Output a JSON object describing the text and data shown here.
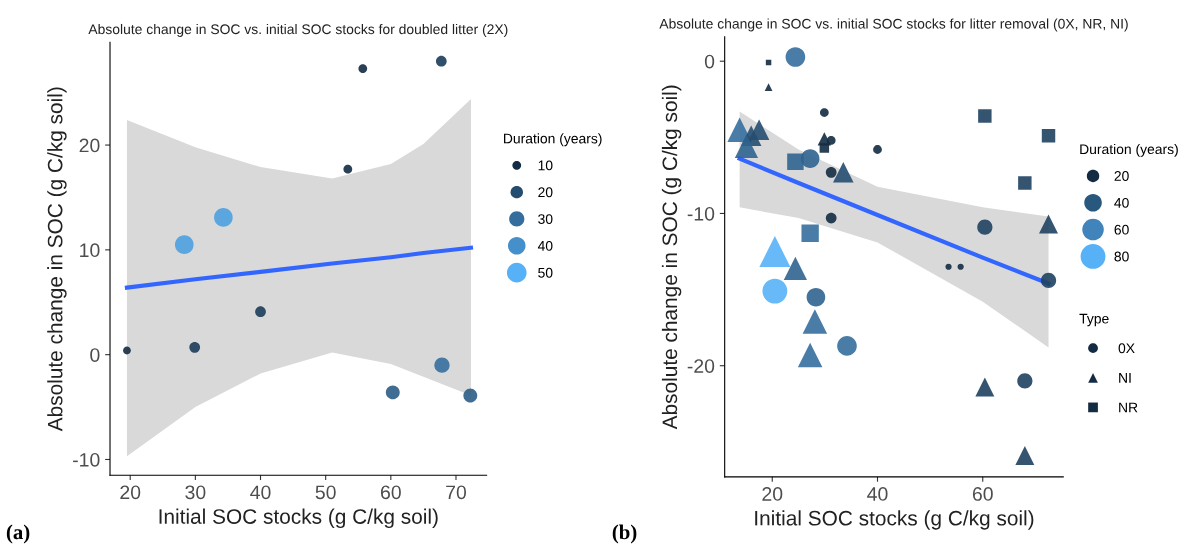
{
  "chart_data": [
    {
      "type": "scatter",
      "title": "Absolute change in SOC vs. initial SOC stocks for doubled litter (2X)",
      "xlabel": "Initial SOC stocks (g C/kg soil)",
      "ylabel": "Absolute change in SOC (g C/kg soil)",
      "legend_title": "Duration (years)",
      "size_legend": [
        10,
        20,
        30,
        40,
        50
      ],
      "xlim": [
        16.9,
        74.7
      ],
      "ylim": [
        -11.5,
        29.8
      ],
      "xticks": [
        20,
        30,
        40,
        50,
        60,
        70
      ],
      "yticks": [
        -10,
        0,
        10,
        20
      ],
      "grid": false,
      "annotations": [
        "(a)"
      ],
      "series": [
        {
          "type": "line",
          "color": "#3366ff",
          "x": [
            19.5,
            30,
            40,
            51,
            60,
            65,
            72.3
          ],
          "values": [
            6.4,
            7.2,
            7.9,
            8.7,
            9.3,
            9.7,
            10.2
          ],
          "lower": [
            -9.7,
            -5.0,
            -1.8,
            0.2,
            -0.9,
            -2.1,
            -3.9
          ],
          "upper": [
            22.4,
            19.8,
            17.9,
            16.8,
            18.2,
            20.1,
            24.4
          ]
        },
        {
          "marker": "circle",
          "color": "#356e9d",
          "x": [
            67.75,
            55.7,
            53.4,
            34.3,
            28.3,
            40.0,
            19.5,
            29.9,
            67.85,
            60.3,
            72.2
          ],
          "values": [
            28.0,
            27.3,
            17.7,
            13.1,
            10.5,
            4.1,
            0.4,
            0.7,
            -1.0,
            -3.6,
            -3.9
          ],
          "sizes": [
            15,
            10,
            10,
            45,
            45,
            15,
            8,
            15,
            30,
            25,
            25
          ],
          "colors": [
            "#1b3c5a",
            "#132b43",
            "#132b43",
            "#4ea0e0",
            "#4ea0e0",
            "#1b3c5a",
            "#132b43",
            "#1b3c5a",
            "#356e9d",
            "#2c5d86",
            "#2c5d86"
          ]
        }
      ]
    },
    {
      "type": "scatter",
      "title": "Absolute change in SOC vs. initial SOC stocks for litter removal (0X, NR, NI)",
      "xlabel": "Initial SOC stocks (g C/kg soil)",
      "ylabel": "Absolute change in SOC (g C/kg soil)",
      "legend_title": [
        "Duration (years)",
        "Type"
      ],
      "size_legend": [
        20,
        40,
        60,
        80
      ],
      "xlim": [
        10.96,
        75.3
      ],
      "ylim": [
        -27.3,
        1.6
      ],
      "xticks": [
        20,
        40,
        60
      ],
      "yticks": [
        -20,
        -10,
        0
      ],
      "grid": false,
      "legend": "right",
      "annotations": [
        "(b)"
      ],
      "series": [
        {
          "type": "line",
          "color": "#3366ff",
          "x": [
            13.8,
            25,
            40,
            60,
            72.5
          ],
          "values": [
            -6.4,
            -8.0,
            -10.1,
            -12.9,
            -14.6
          ],
          "lower": [
            -9.6,
            -10.3,
            -11.9,
            -15.8,
            -18.8
          ],
          "upper": [
            -3.3,
            -5.8,
            -8.25,
            -9.6,
            -10.2
          ]
        },
        {
          "name": "0X",
          "marker": "circle",
          "color": "#132b43",
          "x": [
            24.4,
            29.9,
            31.2,
            40.0,
            27.2,
            31.2,
            31.2,
            60.4,
            53.5,
            55.8,
            72.5,
            20.5,
            28.3,
            34.2,
            68.0
          ],
          "values": [
            0.28,
            -3.37,
            -5.2,
            -5.8,
            -6.4,
            -7.3,
            -10.3,
            -10.9,
            -13.5,
            -13.5,
            -14.4,
            -15.1,
            -15.5,
            -18.7,
            -21.0
          ],
          "sizes": [
            50,
            10,
            10,
            10,
            45,
            15,
            15,
            30,
            5,
            5,
            30,
            80,
            45,
            50,
            30
          ],
          "colors": [
            "#356e9d",
            "#132b43",
            "#132b43",
            "#132b43",
            "#2f638f",
            "#132b43",
            "#132b43",
            "#1e4161",
            "#132b43",
            "#132b43",
            "#1e4161",
            "#56b1f7",
            "#2f638f",
            "#356e9d",
            "#1e4161"
          ]
        },
        {
          "name": "NI",
          "marker": "triangle",
          "color": "#132b43",
          "x": [
            19.3,
            13.8,
            17.5,
            16.0,
            15.1,
            29.9,
            33.5,
            72.5,
            20.5,
            24.4,
            28.1,
            27.2,
            60.4,
            68.0
          ],
          "values": [
            -1.7,
            -4.5,
            -4.5,
            -4.9,
            -5.6,
            -5.1,
            -7.3,
            -10.7,
            -12.5,
            -13.6,
            -17.1,
            -19.3,
            -21.4,
            -25.9
          ],
          "sizes": [
            5,
            50,
            35,
            35,
            45,
            15,
            35,
            30,
            80,
            45,
            50,
            50,
            30,
            30
          ],
          "colors": [
            "#132b43",
            "#356e9d",
            "#244d70",
            "#244d70",
            "#2f638f",
            "#132b43",
            "#244d70",
            "#1e4161",
            "#56b1f7",
            "#2f638f",
            "#356e9d",
            "#356e9d",
            "#1e4161",
            "#1e4161"
          ]
        },
        {
          "name": "NR",
          "marker": "square",
          "color": "#132b43",
          "x": [
            19.3,
            29.9,
            24.4,
            60.4,
            72.5,
            68.0,
            27.2
          ],
          "values": [
            -0.09,
            -5.7,
            -6.6,
            -3.6,
            -4.9,
            -8.0,
            -11.3
          ],
          "sizes": [
            5,
            15,
            45,
            30,
            30,
            30,
            50
          ],
          "colors": [
            "#132b43",
            "#132b43",
            "#2f638f",
            "#1e4161",
            "#1e4161",
            "#1e4161",
            "#356e9d"
          ]
        }
      ]
    }
  ]
}
